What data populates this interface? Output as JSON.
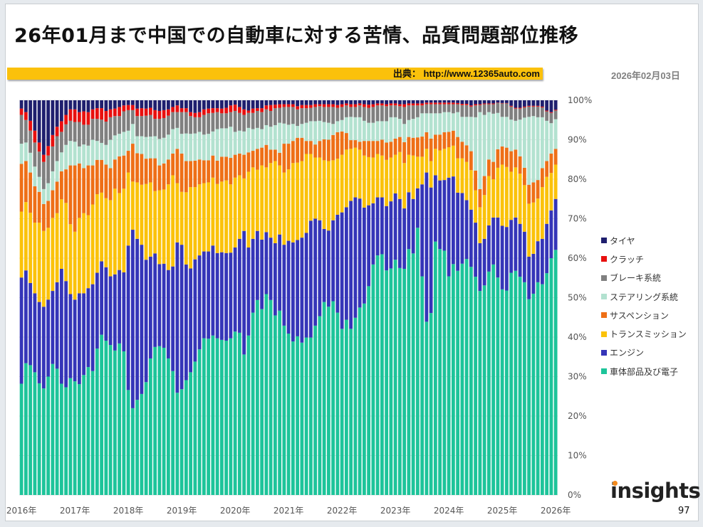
{
  "title": "26年01月まで中国での自動車に対する苦情、品質問題部位推移",
  "source": "出典： http://www.12365auto.com",
  "date": "2026年02月03日",
  "logo": "insights",
  "page_number": "97",
  "chart_data": {
    "type": "bar",
    "stacked": "percent",
    "ylim": [
      0,
      100
    ],
    "y_ticks": [
      "0%",
      "10%",
      "20%",
      "30%",
      "40%",
      "50%",
      "60%",
      "70%",
      "80%",
      "90%",
      "100%"
    ],
    "x_ticks": [
      "2016年",
      "2017年",
      "2018年",
      "2019年",
      "2020年",
      "2021年",
      "2022年",
      "2023年",
      "2024年",
      "2025年",
      "2026年"
    ],
    "grid": true,
    "legend_position": "right",
    "categories": [
      "2016-01",
      "2016-02",
      "2016-03",
      "2016-04",
      "2016-05",
      "2016-06",
      "2016-07",
      "2016-08",
      "2016-09",
      "2016-10",
      "2016-11",
      "2016-12",
      "2017-01",
      "2017-02",
      "2017-03",
      "2017-04",
      "2017-05",
      "2017-06",
      "2017-07",
      "2017-08",
      "2017-09",
      "2017-10",
      "2017-11",
      "2017-12",
      "2018-01",
      "2018-02",
      "2018-03",
      "2018-04",
      "2018-05",
      "2018-06",
      "2018-07",
      "2018-08",
      "2018-09",
      "2018-10",
      "2018-11",
      "2018-12",
      "2019-01",
      "2019-02",
      "2019-03",
      "2019-04",
      "2019-05",
      "2019-06",
      "2019-07",
      "2019-08",
      "2019-09",
      "2019-10",
      "2019-11",
      "2019-12",
      "2020-01",
      "2020-02",
      "2020-03",
      "2020-04",
      "2020-05",
      "2020-06",
      "2020-07",
      "2020-08",
      "2020-09",
      "2020-10",
      "2020-11",
      "2020-12",
      "2021-01",
      "2021-02",
      "2021-03",
      "2021-04",
      "2021-05",
      "2021-06",
      "2021-07",
      "2021-08",
      "2021-09",
      "2021-10",
      "2021-11",
      "2021-12",
      "2022-01",
      "2022-02",
      "2022-03",
      "2022-04",
      "2022-05",
      "2022-06",
      "2022-07",
      "2022-08",
      "2022-09",
      "2022-10",
      "2022-11",
      "2022-12",
      "2023-01",
      "2023-02",
      "2023-03",
      "2023-04",
      "2023-05",
      "2023-06",
      "2023-07",
      "2023-08",
      "2023-09",
      "2023-10",
      "2023-11",
      "2023-12",
      "2024-01",
      "2024-02",
      "2024-03",
      "2024-04",
      "2024-05",
      "2024-06",
      "2024-07",
      "2024-08",
      "2024-09",
      "2024-10",
      "2024-11",
      "2024-12",
      "2025-01",
      "2025-02",
      "2025-03",
      "2025-04",
      "2025-05",
      "2025-06",
      "2025-07",
      "2025-08",
      "2025-09",
      "2025-10",
      "2025-11",
      "2025-12",
      "2026-01"
    ],
    "series": [
      {
        "name": "車体部品及び電子",
        "color": "#1dc49a",
        "values": [
          28.2,
          33.4,
          32.9,
          31.1,
          28.3,
          27.0,
          30.0,
          33.2,
          32.0,
          28.2,
          27.3,
          29.6,
          28.8,
          28.1,
          30.4,
          32.4,
          31.4,
          37.1,
          40.6,
          39.1,
          38.0,
          36.6,
          38.4,
          36.4,
          26.6,
          22.0,
          24.1,
          25.6,
          28.6,
          34.6,
          37.5,
          37.7,
          37.3,
          34.6,
          31.4,
          25.9,
          26.8,
          29.1,
          31.1,
          33.8,
          36.9,
          39.7,
          39.6,
          40.4,
          39.7,
          39.3,
          39.1,
          39.7,
          41.4,
          41.1,
          35.6,
          40.4,
          46.2,
          49.4,
          47.1,
          50.9,
          49.4,
          45.5,
          46.7,
          42.9,
          40.9,
          38.9,
          40.2,
          38.6,
          39.9,
          39.9,
          42.9,
          45.3,
          48.9,
          47.7,
          49.1,
          46.2,
          42.1,
          44.4,
          42.1,
          44.9,
          47.5,
          48.5,
          52.9,
          58.4,
          60.7,
          61.0,
          56.9,
          57.4,
          59.6,
          57.5,
          57.3,
          62.3,
          61.2,
          67.7,
          55.4,
          43.9,
          46.1,
          64.2,
          62.3,
          61.9,
          55.4,
          58.5,
          56.8,
          58.6,
          59.8,
          57.8,
          55.3,
          51.7,
          53.1,
          56.6,
          58.4,
          55.1,
          52.1,
          51.8,
          56.3,
          56.8,
          55.3,
          53.9,
          49.6,
          51.0,
          53.9,
          53.4,
          56.2,
          60.0,
          62.1
        ]
      },
      {
        "name": "エンジン",
        "color": "#3535b8",
        "values": [
          26.9,
          23.5,
          20.8,
          20.0,
          20.6,
          20.7,
          19.5,
          18.5,
          21.9,
          29.1,
          26.9,
          21.3,
          20.7,
          23.0,
          20.7,
          20.0,
          22.0,
          19.2,
          18.6,
          18.6,
          17.4,
          19.3,
          18.6,
          20.0,
          36.6,
          45.2,
          40.8,
          37.8,
          31.0,
          25.8,
          23.7,
          20.8,
          21.3,
          22.4,
          26.5,
          38.1,
          36.6,
          29.3,
          26.3,
          25.9,
          23.8,
          22.0,
          22.1,
          22.8,
          21.6,
          22.2,
          22.2,
          21.7,
          21.3,
          23.8,
          31.3,
          22.3,
          18.7,
          17.5,
          17.6,
          15.7,
          15.8,
          18.3,
          19.3,
          20.5,
          23.5,
          25.1,
          24.4,
          26.6,
          26.5,
          29.6,
          27.1,
          24.3,
          18.5,
          19.3,
          20.5,
          24.8,
          29.5,
          28.5,
          32.4,
          30.5,
          27.6,
          24.3,
          20.5,
          15.5,
          14.7,
          14.4,
          16.3,
          17.0,
          16.8,
          17.5,
          15.3,
          14.4,
          13.8,
          10.0,
          23.3,
          37.8,
          31.8,
          16.8,
          17.4,
          17.9,
          25.0,
          22.2,
          19.8,
          17.9,
          14.9,
          14.5,
          13.7,
          12.1,
          11.8,
          11.7,
          11.9,
          15.2,
          16.1,
          16.1,
          13.4,
          13.5,
          13.4,
          12.8,
          10.8,
          10.1,
          10.4,
          11.5,
          12.5,
          12.1,
          12.9
        ]
      },
      {
        "name": "トランスミッション",
        "color": "#fbc20a",
        "values": [
          16.7,
          17.3,
          17.8,
          17.9,
          20.1,
          19.2,
          18.2,
          18.5,
          17.5,
          17.6,
          19.8,
          17.7,
          17.2,
          19.1,
          20.3,
          18.5,
          20.2,
          19.9,
          17.4,
          17.5,
          19.3,
          21.7,
          19.5,
          21.2,
          18.5,
          12.2,
          14.3,
          15.2,
          19.2,
          18.8,
          15.8,
          18.7,
          18.8,
          21.7,
          23.1,
          15.0,
          13.4,
          18.3,
          20.6,
          18.3,
          18.0,
          17.3,
          17.5,
          17.2,
          17.5,
          17.9,
          18.4,
          17.3,
          17.7,
          16.1,
          13.3,
          19.2,
          18.1,
          15.5,
          18.8,
          16.4,
          18.9,
          20.8,
          17.5,
          18.3,
          18.1,
          20.1,
          19.6,
          19.4,
          20.0,
          16.9,
          15.5,
          15.9,
          17.4,
          17.6,
          15.2,
          14.2,
          14.6,
          14.6,
          13.2,
          12.6,
          12.4,
          13.2,
          12.2,
          11.6,
          11.0,
          10.6,
          11.7,
          11.1,
          9.8,
          11.9,
          11.5,
          9.5,
          11.0,
          8.0,
          7.0,
          6.0,
          6.7,
          6.7,
          7.6,
          7.9,
          7.7,
          7.8,
          8.7,
          8.8,
          9.7,
          10.0,
          8.2,
          9.1,
          11.1,
          12.5,
          9.7,
          12.6,
          15.5,
          15.2,
          12.2,
          12.7,
          12.7,
          11.8,
          13.4,
          13.0,
          10.8,
          13.1,
          11.9,
          9.5,
          8.7
        ]
      },
      {
        "name": "サスペンション",
        "color": "#ee6f17",
        "values": [
          12.1,
          10.4,
          10.2,
          9.2,
          7.8,
          6.8,
          6.8,
          7.0,
          8.0,
          7.1,
          8.5,
          14.9,
          16.8,
          13.8,
          11.4,
          12.6,
          9.9,
          8.7,
          8.3,
          8.5,
          8.1,
          7.4,
          9.3,
          8.4,
          5.5,
          9.6,
          7.4,
          7.8,
          6.4,
          6.1,
          8.3,
          6.3,
          6.6,
          6.3,
          5.5,
          8.7,
          9.7,
          7.9,
          6.6,
          6.7,
          6.3,
          5.8,
          5.6,
          5.6,
          5.9,
          6.3,
          6.0,
          6.7,
          5.8,
          5.5,
          6.0,
          4.9,
          4.2,
          5.3,
          4.5,
          5.7,
          3.4,
          2.9,
          3.2,
          7.3,
          6.5,
          5.6,
          6.3,
          5.9,
          3.3,
          3.3,
          3.3,
          4.2,
          5.3,
          5.4,
          6.4,
          6.7,
          5.9,
          4.2,
          2.2,
          1.9,
          2.0,
          3.7,
          4.1,
          4.2,
          3.3,
          4.0,
          4.4,
          4.0,
          4.1,
          3.8,
          5.3,
          4.5,
          4.5,
          4.9,
          5.1,
          4.2,
          5.7,
          3.6,
          4.0,
          4.2,
          3.9,
          3.8,
          5.4,
          4.2,
          4.2,
          4.8,
          5.0,
          4.6,
          4.8,
          4.2,
          4.4,
          4.7,
          4.6,
          4.9,
          5.2,
          4.5,
          4.4,
          4.4,
          4.8,
          5.1,
          4.7,
          4.8,
          4.0,
          4.9,
          4.0
        ]
      },
      {
        "name": "ステアリング系統",
        "color": "#b3e2d0",
        "values": [
          5.1,
          4.7,
          5.0,
          5.0,
          3.8,
          3.8,
          4.5,
          4.8,
          5.2,
          4.8,
          6.2,
          6.2,
          6.0,
          4.3,
          6.0,
          5.0,
          6.5,
          4.8,
          4.3,
          5.0,
          7.2,
          6.1,
          5.7,
          6.0,
          5.1,
          5.0,
          4.3,
          4.5,
          5.5,
          5.5,
          5.6,
          6.7,
          6.5,
          6.3,
          6.2,
          5.3,
          5.0,
          7.0,
          6.9,
          6.9,
          7.0,
          6.5,
          6.7,
          6.1,
          8.0,
          7.2,
          7.2,
          7.9,
          5.8,
          5.8,
          5.9,
          6.2,
          5.5,
          5.3,
          4.7,
          5.0,
          5.8,
          6.2,
          7.6,
          5.1,
          4.8,
          4.3,
          3.0,
          3.5,
          4.6,
          5.0,
          5.9,
          5.1,
          4.4,
          4.3,
          2.8,
          2.8,
          2.9,
          4.0,
          5.9,
          5.8,
          6.2,
          5.1,
          4.6,
          4.6,
          5.0,
          4.7,
          5.4,
          6.2,
          5.4,
          4.6,
          4.6,
          4.3,
          4.8,
          5.1,
          5.9,
          4.8,
          6.4,
          5.4,
          5.4,
          5.1,
          5.0,
          4.4,
          6.3,
          6.3,
          7.2,
          8.7,
          13.5,
          19.5,
          15.5,
          12.0,
          12.2,
          9.2,
          7.5,
          7.8,
          8.0,
          7.3,
          9.3,
          12.7,
          17.2,
          16.8,
          15.9,
          12.9,
          10.2,
          7.7,
          7.5
        ]
      },
      {
        "name": "ブレーキ系統",
        "color": "#808080",
        "values": [
          7.3,
          5.7,
          5.6,
          6.1,
          6.4,
          6.9,
          7.0,
          6.3,
          6.3,
          5.2,
          5.2,
          5.1,
          5.0,
          6.2,
          5.0,
          5.3,
          5.3,
          5.6,
          5.9,
          5.9,
          5.7,
          4.9,
          4.5,
          5.2,
          5.2,
          3.5,
          5.1,
          5.1,
          5.4,
          5.5,
          4.4,
          5.1,
          5.0,
          4.8,
          4.3,
          4.0,
          5.5,
          5.4,
          4.5,
          4.1,
          3.7,
          5.0,
          5.2,
          4.7,
          4.3,
          3.8,
          3.8,
          3.7,
          5.3,
          4.5,
          4.2,
          3.8,
          4.1,
          4.3,
          4.3,
          4.0,
          4.0,
          4.3,
          3.8,
          4.2,
          4.5,
          4.3,
          4.2,
          4.0,
          3.7,
          3.4,
          3.6,
          3.7,
          3.8,
          4.0,
          4.3,
          3.4,
          3.3,
          3.0,
          2.5,
          2.6,
          3.0,
          3.5,
          3.8,
          4.0,
          4.0,
          4.0,
          3.8,
          3.0,
          3.0,
          3.2,
          4.3,
          3.7,
          3.4,
          3.0,
          2.0,
          2.3,
          2.3,
          2.3,
          2.3,
          2.0,
          2.0,
          2.3,
          2.0,
          3.0,
          3.0,
          2.6,
          3.0,
          1.8,
          2.7,
          2.0,
          2.4,
          2.5,
          3.4,
          3.4,
          3.3,
          3.1,
          2.8,
          2.6,
          2.6,
          2.4,
          2.7,
          2.5,
          2.4,
          2.6,
          2.2
        ]
      },
      {
        "name": "クラッチ",
        "color": "#e8100f",
        "values": [
          1.6,
          2.0,
          2.5,
          3.0,
          2.3,
          1.8,
          2.4,
          2.9,
          2.4,
          2.7,
          2.4,
          2.9,
          3.2,
          2.5,
          3.4,
          3.2,
          2.4,
          2.7,
          2.9,
          2.7,
          2.0,
          1.9,
          2.3,
          1.5,
          1.3,
          1.3,
          1.9,
          2.0,
          1.8,
          1.8,
          2.2,
          2.0,
          2.0,
          1.6,
          1.3,
          1.7,
          1.0,
          1.0,
          1.0,
          1.1,
          1.3,
          1.4,
          1.2,
          1.2,
          1.0,
          1.2,
          1.4,
          1.7,
          1.6,
          1.5,
          1.4,
          0.6,
          1.1,
          0.7,
          1.0,
          1.0,
          1.5,
          0.9,
          0.9,
          0.7,
          0.7,
          0.7,
          0.8,
          0.8,
          0.8,
          0.7,
          0.7,
          0.5,
          0.7,
          0.7,
          0.7,
          0.7,
          0.7,
          0.5,
          0.7,
          0.7,
          0.5,
          0.7,
          0.8,
          0.7,
          0.5,
          0.5,
          0.5,
          0.5,
          0.5,
          0.5,
          0.7,
          0.5,
          0.5,
          0.5,
          0.5,
          0.4,
          0.4,
          0.4,
          0.4,
          0.4,
          0.4,
          0.4,
          0.3,
          0.3,
          0.3,
          0.3,
          0.3,
          0.2,
          0.2,
          0.2,
          0.2,
          0.1,
          0.1,
          0.1,
          0.2,
          0.2,
          0.2,
          0.2,
          0.2,
          0.2,
          0.2,
          0.2,
          0.2,
          0.2,
          0.2
        ]
      },
      {
        "name": "タイヤ",
        "color": "#1f1f6e",
        "values": [
          2.1,
          3.0,
          5.2,
          7.7,
          10.7,
          13.8,
          11.6,
          8.8,
          6.7,
          5.3,
          3.7,
          2.3,
          2.3,
          3.0,
          2.8,
          3.0,
          2.3,
          2.0,
          2.0,
          2.7,
          2.3,
          2.1,
          1.7,
          1.3,
          1.2,
          1.2,
          2.1,
          2.0,
          2.1,
          1.9,
          2.5,
          2.7,
          2.5,
          2.3,
          1.7,
          1.3,
          2.0,
          2.0,
          3.0,
          3.2,
          3.0,
          2.3,
          2.1,
          2.0,
          2.0,
          2.1,
          1.9,
          1.3,
          1.1,
          1.7,
          2.3,
          2.6,
          2.1,
          2.0,
          2.0,
          1.3,
          1.2,
          1.1,
          1.0,
          1.0,
          1.0,
          1.0,
          1.5,
          1.2,
          1.2,
          1.2,
          1.0,
          1.0,
          1.0,
          1.0,
          1.0,
          1.2,
          1.0,
          0.8,
          1.0,
          1.0,
          0.8,
          1.0,
          1.1,
          1.0,
          0.8,
          0.8,
          1.0,
          0.8,
          0.8,
          1.0,
          1.0,
          0.8,
          0.8,
          0.8,
          0.8,
          0.6,
          0.6,
          0.6,
          0.6,
          0.6,
          0.6,
          0.6,
          0.7,
          0.9,
          0.9,
          1.3,
          1.0,
          1.0,
          0.8,
          0.8,
          0.8,
          0.6,
          0.7,
          0.7,
          1.4,
          1.9,
          1.9,
          1.6,
          1.4,
          1.4,
          1.4,
          1.6,
          2.6,
          3.0,
          2.4
        ]
      }
    ]
  }
}
